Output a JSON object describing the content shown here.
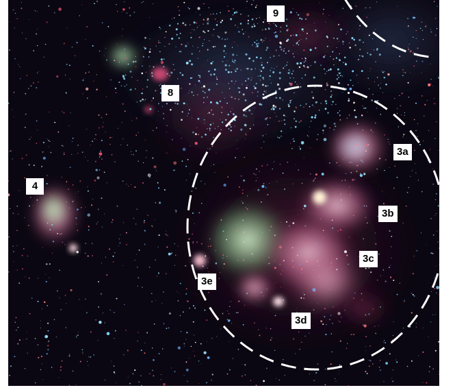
{
  "labels": {
    "region_9": "9",
    "region_8": "8",
    "region_4": "4",
    "region_3a": "3a",
    "region_3b": "3b",
    "region_3c": "3c",
    "region_3d": "3d",
    "region_3e": "3e"
  },
  "colors": {
    "sky_background": "#0b0712",
    "nebula_pink": "#d98fb0",
    "nebula_green": "#8fc98f",
    "star_blue": "#7fd8ff",
    "star_red": "#ff6a6a",
    "label_background": "#ffffff",
    "outline_dash": "#ffffff"
  }
}
